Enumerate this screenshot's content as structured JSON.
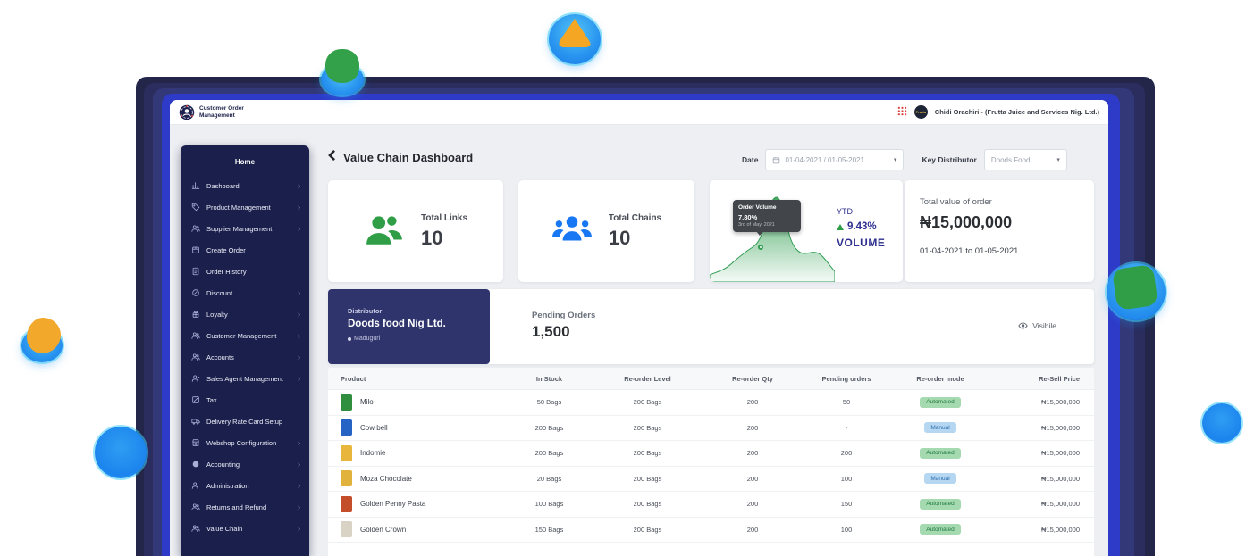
{
  "window": {
    "brand_line1": "Customer Order",
    "brand_line2": "Management",
    "user_name": "Chidi Orachiri - (Frutta Juice and Services Nig. Ltd.)",
    "avatar_text": "Frutta"
  },
  "sidebar": {
    "home_label": "Home",
    "items": [
      {
        "label": "Dashboard",
        "icon": "bar-chart-icon",
        "submenu": true
      },
      {
        "label": "Product Management",
        "icon": "tag-icon",
        "submenu": true
      },
      {
        "label": "Supplier Management",
        "icon": "users-icon",
        "submenu": true
      },
      {
        "label": "Create Order",
        "icon": "package-icon",
        "submenu": false
      },
      {
        "label": "Order History",
        "icon": "document-icon",
        "submenu": false
      },
      {
        "label": "Discount",
        "icon": "discount-icon",
        "submenu": true
      },
      {
        "label": "Loyalty",
        "icon": "gift-icon",
        "submenu": true
      },
      {
        "label": "Customer Management",
        "icon": "users-icon",
        "submenu": true
      },
      {
        "label": "Accounts",
        "icon": "users-icon",
        "submenu": true
      },
      {
        "label": "Sales Agent Management",
        "icon": "user-check-icon",
        "submenu": true
      },
      {
        "label": "Tax",
        "icon": "tax-icon",
        "submenu": false
      },
      {
        "label": "Delivery Rate Card Setup",
        "icon": "truck-icon",
        "submenu": false
      },
      {
        "label": "Webshop Configuration",
        "icon": "store-icon",
        "submenu": true
      },
      {
        "label": "Accounting",
        "icon": "circle-icon",
        "submenu": true
      },
      {
        "label": "Administration",
        "icon": "user-plus-icon",
        "submenu": true
      },
      {
        "label": "Returns and Refund",
        "icon": "users-icon",
        "submenu": true
      },
      {
        "label": "Value Chain",
        "icon": "users-icon",
        "submenu": true
      }
    ]
  },
  "page": {
    "title": "Value Chain Dashboard"
  },
  "filters": {
    "date_label": "Date",
    "date_value": "01-04-2021 / 01-05-2021",
    "distributor_label": "Key Distributor",
    "distributor_value": "Doods Food"
  },
  "stats": {
    "total_links": {
      "label": "Total Links",
      "value": "10"
    },
    "total_chains": {
      "label": "Total Chains",
      "value": "10"
    },
    "ytd": {
      "label": "YTD",
      "percent": "9.43%",
      "metric": "VOLUME",
      "tooltip_title": "Order Volume",
      "tooltip_value": "7.80%",
      "tooltip_date": "3rd of May, 2021"
    },
    "total_value": {
      "label": "Total value of order",
      "value": "₦15,000,000",
      "range": "01-04-2021 to 01-05-2021"
    }
  },
  "distributor": {
    "label": "Distributor",
    "name": "Doods food Nig Ltd.",
    "location": "Maduguri",
    "pending_label": "Pending Orders",
    "pending_value": "1,500",
    "visible_label": "Visibile"
  },
  "table": {
    "columns": [
      "Product",
      "In Stock",
      "Re-order Level",
      "Re-order Qty",
      "Pending orders",
      "Re-order mode",
      "Re-Sell Price"
    ],
    "rows": [
      {
        "product": "Milo",
        "thumb": "#2f8f3e",
        "in_stock": "50 Bags",
        "reorder_level": "200 Bags",
        "reorder_qty": "200",
        "pending_orders": "50",
        "reorder_mode": "Automated",
        "resell_price": "₦15,000,000"
      },
      {
        "product": "Cow bell",
        "thumb": "#2563c4",
        "in_stock": "200 Bags",
        "reorder_level": "200 Bags",
        "reorder_qty": "200",
        "pending_orders": "-",
        "reorder_mode": "Manual",
        "resell_price": "₦15,000,000"
      },
      {
        "product": "Indomie",
        "thumb": "#e8b63a",
        "in_stock": "200 Bags",
        "reorder_level": "200 Bags",
        "reorder_qty": "200",
        "pending_orders": "200",
        "reorder_mode": "Automated",
        "resell_price": "₦15,000,000"
      },
      {
        "product": "Moza Chocolate",
        "thumb": "#e2b33c",
        "in_stock": "20 Bags",
        "reorder_level": "200 Bags",
        "reorder_qty": "200",
        "pending_orders": "100",
        "reorder_mode": "Manual",
        "resell_price": "₦15,000,000"
      },
      {
        "product": "Golden Penny Pasta",
        "thumb": "#c44e2a",
        "in_stock": "100 Bags",
        "reorder_level": "200 Bags",
        "reorder_qty": "200",
        "pending_orders": "150",
        "reorder_mode": "Automated",
        "resell_price": "₦15,000,000"
      },
      {
        "product": "Golden Crown",
        "thumb": "#d8d3c4",
        "in_stock": "150 Bags",
        "reorder_level": "200 Bags",
        "reorder_qty": "200",
        "pending_orders": "100",
        "reorder_mode": "Automated",
        "resell_price": "₦15,000,000"
      }
    ]
  },
  "chart_data": {
    "type": "area",
    "title": "Order Volume sparkline (YTD)",
    "series": [
      {
        "name": "Order Volume",
        "x_norm": [
          0,
          8,
          17,
          26,
          34,
          40,
          46,
          52,
          58,
          66,
          74,
          82,
          90,
          100
        ],
        "y_norm_pct": [
          6,
          10,
          14,
          24,
          38,
          52,
          88,
          96,
          60,
          30,
          26,
          28,
          20,
          10
        ]
      }
    ],
    "highlight_point": {
      "label": "Order Volume",
      "value": "7.80%",
      "date": "3rd of May, 2021"
    },
    "ytd": {
      "change": "9.43%",
      "direction": "up",
      "metric": "VOLUME"
    },
    "axes": "none (sparkline)",
    "grid": false,
    "legend": "none"
  },
  "colors": {
    "sidebar_bg": "#1b1f4c",
    "distributor_card_bg": "#30346d",
    "links_green": "#2f9e47",
    "chains_blue": "#1877f2",
    "ytd_text": "#2d2f8e",
    "spark_green": "#2f9d52",
    "badge_automated_bg": "#a5d9b0",
    "badge_manual_bg": "#b5d7f2",
    "grid_icon_red": "#d8403c"
  }
}
